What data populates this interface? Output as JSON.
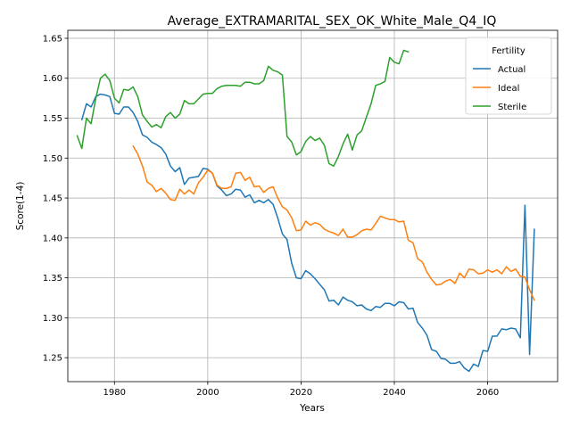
{
  "chart_data": {
    "type": "line",
    "title": "Average_EXTRAMARITAL_SEX_OK_White_Male_Q4_IQ",
    "xlabel": "Years",
    "ylabel": "Score(1-4)",
    "xlim": [
      1970,
      2075
    ],
    "ylim": [
      1.22,
      1.66
    ],
    "x_ticks": [
      1980,
      2000,
      2020,
      2040,
      2060
    ],
    "y_ticks": [
      1.25,
      1.3,
      1.35,
      1.4,
      1.45,
      1.5,
      1.55,
      1.6,
      1.65
    ],
    "grid": true,
    "legend": {
      "title": "Fertility",
      "placement": "top-right"
    },
    "series": [
      {
        "name": "Actual",
        "color": "#1f77b4",
        "x": [
          1973,
          1974,
          1975,
          1976,
          1977,
          1978,
          1979,
          1980,
          1981,
          1982,
          1983,
          1984,
          1985,
          1986,
          1987,
          1988,
          1989,
          1990,
          1991,
          1992,
          1993,
          1994,
          1995,
          1996,
          1997,
          1998,
          1999,
          2000,
          2001,
          2002,
          2003,
          2004,
          2005,
          2006,
          2007,
          2008,
          2009,
          2010,
          2011,
          2012,
          2013,
          2014,
          2015,
          2016,
          2017,
          2018,
          2019,
          2020,
          2021,
          2022,
          2023,
          2024,
          2025,
          2026,
          2027,
          2028,
          2029,
          2030,
          2031,
          2032,
          2033,
          2034,
          2035,
          2036,
          2037,
          2038,
          2039,
          2040,
          2041,
          2042,
          2043,
          2044,
          2045,
          2046,
          2047,
          2048,
          2049,
          2050,
          2051,
          2052,
          2053,
          2054,
          2055,
          2056,
          2057,
          2058,
          2059,
          2060,
          2061,
          2062,
          2063,
          2064,
          2065,
          2066,
          2067,
          2068,
          2069,
          2070
        ],
        "y": [
          1.548,
          1.568,
          1.564,
          1.577,
          1.58,
          1.579,
          1.577,
          1.556,
          1.555,
          1.564,
          1.564,
          1.557,
          1.546,
          1.529,
          1.526,
          1.52,
          1.517,
          1.513,
          1.505,
          1.49,
          1.483,
          1.488,
          1.467,
          1.475,
          1.476,
          1.477,
          1.487,
          1.486,
          1.481,
          1.465,
          1.46,
          1.453,
          1.455,
          1.461,
          1.46,
          1.451,
          1.454,
          1.444,
          1.447,
          1.444,
          1.448,
          1.442,
          1.425,
          1.405,
          1.398,
          1.368,
          1.35,
          1.349,
          1.359,
          1.355,
          1.349,
          1.342,
          1.335,
          1.321,
          1.322,
          1.316,
          1.326,
          1.322,
          1.32,
          1.315,
          1.316,
          1.311,
          1.309,
          1.314,
          1.313,
          1.318,
          1.318,
          1.315,
          1.32,
          1.319,
          1.311,
          1.312,
          1.294,
          1.287,
          1.278,
          1.26,
          1.258,
          1.249,
          1.248,
          1.243,
          1.243,
          1.245,
          1.237,
          1.233,
          1.242,
          1.239,
          1.259,
          1.258,
          1.277,
          1.277,
          1.286,
          1.285,
          1.287,
          1.286,
          1.275,
          1.441,
          1.254,
          1.411
        ]
      },
      {
        "name": "Ideal",
        "color": "#ff7f0e",
        "x": [
          1984,
          1985,
          1986,
          1987,
          1988,
          1989,
          1990,
          1991,
          1992,
          1993,
          1994,
          1995,
          1996,
          1997,
          1998,
          1999,
          2000,
          2001,
          2002,
          2003,
          2004,
          2005,
          2006,
          2007,
          2008,
          2009,
          2010,
          2011,
          2012,
          2013,
          2014,
          2015,
          2016,
          2017,
          2018,
          2019,
          2020,
          2021,
          2022,
          2023,
          2024,
          2025,
          2026,
          2027,
          2028,
          2029,
          2030,
          2031,
          2032,
          2033,
          2034,
          2035,
          2036,
          2037,
          2038,
          2039,
          2040,
          2041,
          2042,
          2043,
          2044,
          2045,
          2046,
          2047,
          2048,
          2049,
          2050,
          2051,
          2052,
          2053,
          2054,
          2055,
          2056,
          2057,
          2058,
          2059,
          2060,
          2061,
          2062,
          2063,
          2064,
          2065,
          2066,
          2067,
          2068,
          2069,
          2070
        ],
        "y": [
          1.515,
          1.505,
          1.49,
          1.47,
          1.466,
          1.458,
          1.462,
          1.456,
          1.448,
          1.447,
          1.461,
          1.455,
          1.46,
          1.455,
          1.469,
          1.476,
          1.485,
          1.481,
          1.466,
          1.462,
          1.462,
          1.464,
          1.481,
          1.482,
          1.472,
          1.476,
          1.464,
          1.465,
          1.457,
          1.462,
          1.464,
          1.45,
          1.439,
          1.435,
          1.425,
          1.409,
          1.41,
          1.421,
          1.416,
          1.419,
          1.417,
          1.411,
          1.408,
          1.406,
          1.403,
          1.411,
          1.401,
          1.401,
          1.404,
          1.409,
          1.411,
          1.41,
          1.418,
          1.427,
          1.425,
          1.423,
          1.423,
          1.42,
          1.421,
          1.397,
          1.394,
          1.374,
          1.37,
          1.357,
          1.348,
          1.341,
          1.342,
          1.346,
          1.348,
          1.343,
          1.356,
          1.35,
          1.361,
          1.36,
          1.355,
          1.356,
          1.36,
          1.357,
          1.36,
          1.355,
          1.364,
          1.358,
          1.361,
          1.352,
          1.351,
          1.335,
          1.322
        ]
      },
      {
        "name": "Sterile",
        "color": "#2ca02c",
        "x": [
          1972,
          1973,
          1974,
          1975,
          1976,
          1977,
          1978,
          1979,
          1980,
          1981,
          1982,
          1983,
          1984,
          1985,
          1986,
          1987,
          1988,
          1989,
          1990,
          1991,
          1992,
          1993,
          1994,
          1995,
          1996,
          1997,
          1998,
          1999,
          2000,
          2001,
          2002,
          2003,
          2004,
          2005,
          2006,
          2007,
          2008,
          2009,
          2010,
          2011,
          2012,
          2013,
          2014,
          2015,
          2016,
          2017,
          2018,
          2019,
          2020,
          2021,
          2022,
          2023,
          2024,
          2025,
          2026,
          2027,
          2028,
          2029,
          2030,
          2031,
          2032,
          2033,
          2034,
          2035,
          2036,
          2037,
          2038,
          2039,
          2040,
          2041,
          2042,
          2043
        ],
        "y": [
          1.528,
          1.512,
          1.55,
          1.543,
          1.575,
          1.6,
          1.605,
          1.597,
          1.575,
          1.569,
          1.586,
          1.585,
          1.589,
          1.577,
          1.554,
          1.546,
          1.539,
          1.542,
          1.538,
          1.552,
          1.557,
          1.55,
          1.555,
          1.572,
          1.568,
          1.568,
          1.574,
          1.58,
          1.581,
          1.581,
          1.587,
          1.59,
          1.591,
          1.591,
          1.591,
          1.59,
          1.595,
          1.595,
          1.593,
          1.593,
          1.597,
          1.615,
          1.61,
          1.608,
          1.604,
          1.527,
          1.52,
          1.504,
          1.508,
          1.521,
          1.527,
          1.522,
          1.525,
          1.516,
          1.493,
          1.49,
          1.502,
          1.518,
          1.53,
          1.51,
          1.529,
          1.534,
          1.551,
          1.568,
          1.591,
          1.593,
          1.596,
          1.626,
          1.62,
          1.618,
          1.635,
          1.633
        ]
      }
    ]
  }
}
